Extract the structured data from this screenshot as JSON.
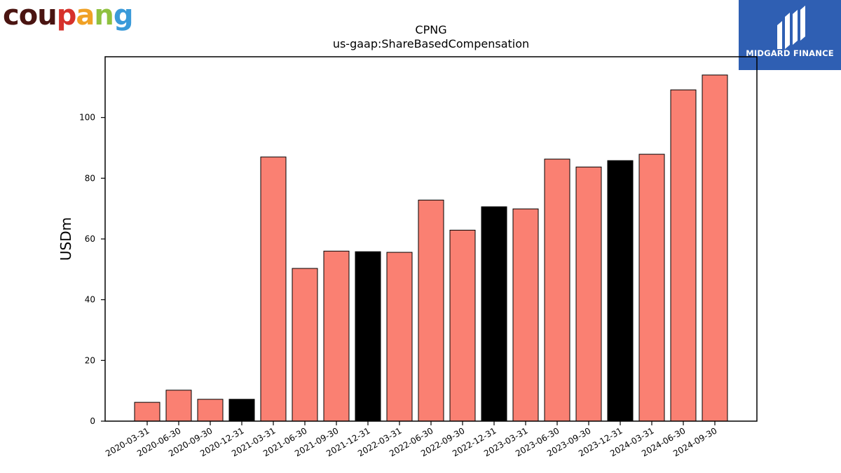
{
  "logos": {
    "left_text": [
      "c",
      "o",
      "u",
      "p",
      "a",
      "n",
      "g"
    ],
    "left_colors": [
      "#4a1411",
      "#4a1411",
      "#4a1411",
      "#d6312b",
      "#f0a125",
      "#8fc13f",
      "#3a9ad9"
    ],
    "right_text": "MIDGARD FINANCE",
    "right_bg": "#2f5fb3"
  },
  "chart_data": {
    "type": "bar",
    "title": "CPNG",
    "subtitle": "us-gaap:ShareBasedCompensation",
    "xlabel": "",
    "ylabel": "USDm",
    "ylim": [
      0,
      120
    ],
    "yticks": [
      0,
      20,
      40,
      60,
      80,
      100
    ],
    "grid": false,
    "categories": [
      "2020-03-31",
      "2020-06-30",
      "2020-09-30",
      "2020-12-31",
      "2021-03-31",
      "2021-06-30",
      "2021-09-30",
      "2021-12-31",
      "2022-03-31",
      "2022-06-30",
      "2022-09-30",
      "2022-12-31",
      "2023-03-31",
      "2023-06-30",
      "2023-09-30",
      "2023-12-31",
      "2024-03-31",
      "2024-06-30",
      "2024-09-30"
    ],
    "values": [
      6.2,
      10.2,
      7.2,
      7.2,
      87.0,
      50.3,
      56.0,
      55.8,
      55.6,
      72.8,
      62.9,
      70.6,
      69.9,
      86.3,
      83.7,
      85.8,
      87.9,
      109.1,
      114.0
    ],
    "bar_colors": [
      "#fa8072",
      "#fa8072",
      "#fa8072",
      "#000000",
      "#fa8072",
      "#fa8072",
      "#fa8072",
      "#000000",
      "#fa8072",
      "#fa8072",
      "#fa8072",
      "#000000",
      "#fa8072",
      "#fa8072",
      "#fa8072",
      "#000000",
      "#fa8072",
      "#fa8072",
      "#fa8072"
    ],
    "colors": {
      "quarter": "#fa8072",
      "year_end": "#000000"
    }
  }
}
